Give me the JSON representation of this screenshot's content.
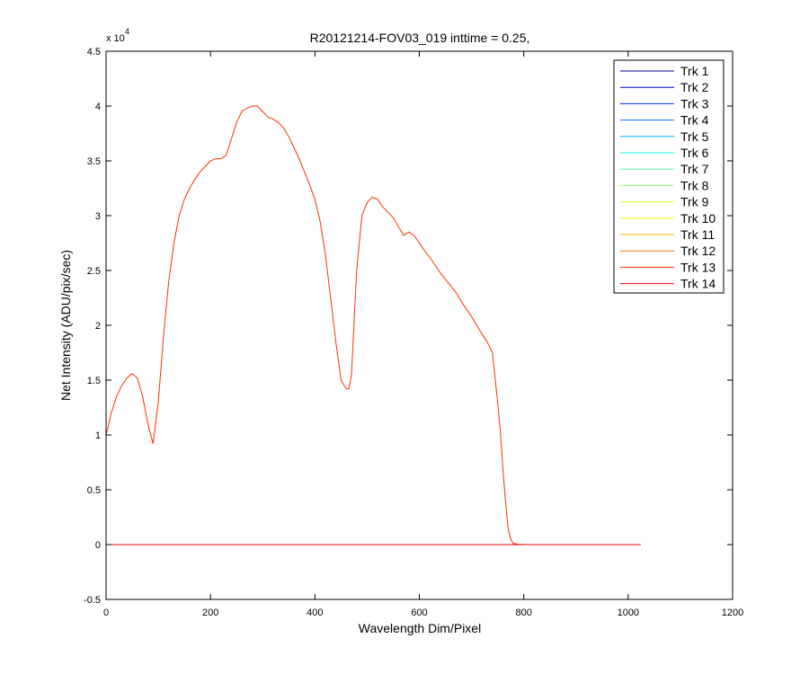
{
  "chart_data": {
    "type": "line",
    "title": "R20121214-FOV03_019 inttime = 0.25,",
    "xlabel": "Wavelength Dim/Pixel",
    "ylabel": "Net Intensity (ADU/pix/sec)",
    "y_exponent_label": "x 10",
    "y_exponent": "4",
    "xlim": [
      0,
      1200
    ],
    "ylim": [
      -0.5,
      4.5
    ],
    "y_multiplier": 10000,
    "xticks": [
      "0",
      "200",
      "400",
      "600",
      "800",
      "1000",
      "1200"
    ],
    "yticks": [
      "-0.5",
      "0",
      "0.5",
      "1",
      "1.5",
      "2",
      "2.5",
      "3",
      "3.5",
      "4",
      "4.5"
    ],
    "grid": false,
    "legend_position": "top-right",
    "series": [
      {
        "name": "Trk 1",
        "color": "#00008f",
        "x": [
          0,
          1024
        ],
        "y": [
          0,
          0
        ]
      },
      {
        "name": "Trk 2",
        "color": "#0000d9",
        "x": [
          0,
          1024
        ],
        "y": [
          0,
          0
        ]
      },
      {
        "name": "Trk 3",
        "color": "#0030ff",
        "x": [
          0,
          1024
        ],
        "y": [
          0,
          0
        ]
      },
      {
        "name": "Trk 4",
        "color": "#0070ff",
        "x": [
          0,
          1024
        ],
        "y": [
          0,
          0
        ]
      },
      {
        "name": "Trk 5",
        "color": "#00b0ff",
        "x": [
          0,
          1024
        ],
        "y": [
          0,
          0
        ]
      },
      {
        "name": "Trk 6",
        "color": "#10efef",
        "x": [
          0,
          1024
        ],
        "y": [
          0,
          0
        ]
      },
      {
        "name": "Trk 7",
        "color": "#50ffaf",
        "x": [
          0,
          1024
        ],
        "y": [
          0,
          0
        ]
      },
      {
        "name": "Trk 8",
        "color": "#90ff70",
        "x": [
          0,
          1024
        ],
        "y": [
          0,
          0
        ]
      },
      {
        "name": "Trk 9",
        "color": "#cfff30",
        "x": [
          0,
          1024
        ],
        "y": [
          0,
          0
        ]
      },
      {
        "name": "Trk 10",
        "color": "#ffef00",
        "x": [
          0,
          1024
        ],
        "y": [
          0,
          0
        ]
      },
      {
        "name": "Trk 11",
        "color": "#ffaf00",
        "x": [
          0,
          1024
        ],
        "y": [
          0,
          0
        ]
      },
      {
        "name": "Trk 12",
        "color": "#ff7000",
        "x": [
          0,
          1024
        ],
        "y": [
          0,
          0
        ]
      },
      {
        "name": "Trk 13",
        "color": "#ff3000",
        "x": [
          0,
          10,
          20,
          30,
          40,
          50,
          60,
          70,
          80,
          90,
          100,
          110,
          120,
          130,
          140,
          150,
          160,
          170,
          180,
          190,
          200,
          210,
          220,
          230,
          240,
          250,
          260,
          270,
          280,
          290,
          300,
          310,
          320,
          330,
          340,
          350,
          360,
          370,
          380,
          390,
          400,
          410,
          420,
          430,
          440,
          450,
          460,
          465,
          470,
          480,
          490,
          500,
          510,
          520,
          530,
          540,
          550,
          560,
          570,
          580,
          590,
          600,
          610,
          620,
          630,
          640,
          650,
          660,
          670,
          680,
          690,
          700,
          710,
          720,
          730,
          740,
          750,
          755,
          760,
          765,
          770,
          775,
          780,
          790,
          800,
          850,
          900,
          950,
          1000,
          1024
        ],
        "y": [
          1.0,
          1.2,
          1.35,
          1.45,
          1.52,
          1.56,
          1.52,
          1.35,
          1.1,
          0.92,
          1.3,
          1.9,
          2.4,
          2.75,
          3.0,
          3.15,
          3.25,
          3.33,
          3.4,
          3.45,
          3.5,
          3.52,
          3.52,
          3.55,
          3.7,
          3.85,
          3.95,
          3.98,
          4.0,
          4.0,
          3.95,
          3.9,
          3.88,
          3.85,
          3.8,
          3.72,
          3.62,
          3.52,
          3.4,
          3.28,
          3.15,
          2.95,
          2.65,
          2.25,
          1.85,
          1.5,
          1.42,
          1.42,
          1.55,
          2.5,
          3.0,
          3.12,
          3.17,
          3.15,
          3.08,
          3.03,
          2.98,
          2.9,
          2.82,
          2.85,
          2.82,
          2.75,
          2.68,
          2.62,
          2.55,
          2.48,
          2.42,
          2.36,
          2.3,
          2.22,
          2.15,
          2.08,
          2.0,
          1.92,
          1.85,
          1.75,
          1.3,
          1.05,
          0.7,
          0.4,
          0.15,
          0.05,
          0.01,
          0.003,
          0.0,
          0.0,
          0.0,
          0.0,
          0.0,
          0.0
        ]
      },
      {
        "name": "Trk 14",
        "color": "#e60000",
        "x": [
          0,
          1024
        ],
        "y": [
          0,
          0
        ]
      }
    ]
  }
}
